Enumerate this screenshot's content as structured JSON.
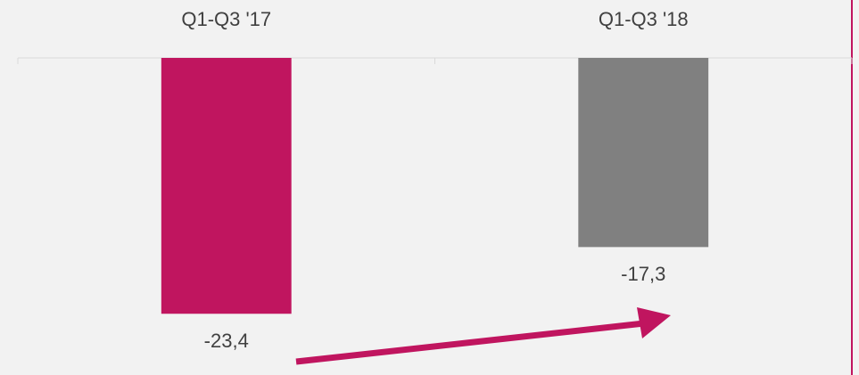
{
  "chart_data": {
    "type": "bar",
    "categories": [
      "Q1-Q3 '17",
      "Q1-Q3 '18"
    ],
    "values": [
      -23.4,
      -17.3
    ],
    "value_labels": [
      "-23,4",
      "-17,3"
    ],
    "colors": [
      "#c0155f",
      "#808080"
    ],
    "ylim": [
      -29,
      0
    ]
  }
}
